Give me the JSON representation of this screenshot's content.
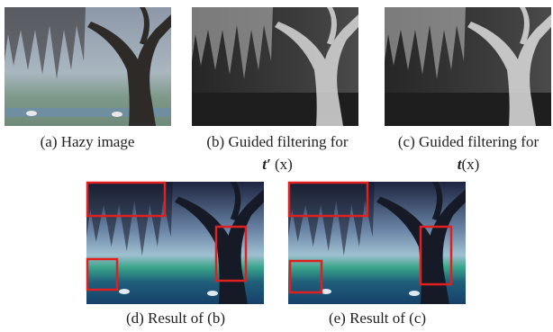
{
  "panels": [
    {
      "label": "(a) Hazy image"
    },
    {
      "label": "(b) Guided filtering for",
      "symbol": "t′",
      "argument": "(x)"
    },
    {
      "label": "(c) Guided filtering for",
      "symbol": "t",
      "argument": "(x)"
    },
    {
      "label": "(d) Result of (b)"
    },
    {
      "label": "(e) Result of (c)"
    }
  ]
}
